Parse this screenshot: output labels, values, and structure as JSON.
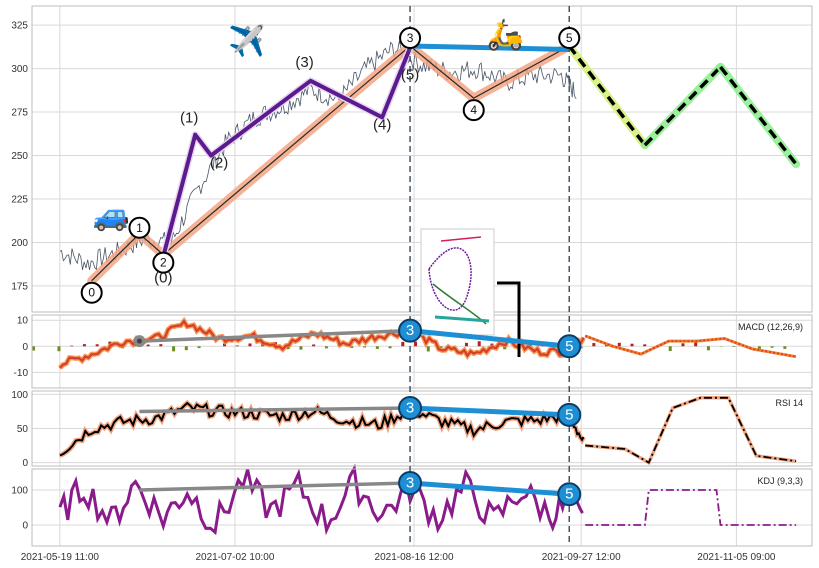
{
  "chart_data": [
    {
      "type": "line",
      "panel": "price",
      "x_ticks": [
        "2021-05-19 11:00",
        "2021-07-02 10:00",
        "2021-08-16 12:00",
        "2021-09-27 12:00",
        "2021-11-05 09:00"
      ],
      "y_ticks": [
        175,
        200,
        225,
        250,
        275,
        300,
        325
      ],
      "ylim": [
        160,
        336
      ],
      "grid": true,
      "series": [
        {
          "role": "price",
          "color": "#4a5568",
          "x": [
            "2021-05-19",
            "2021-05-26",
            "2021-06-02",
            "2021-06-09",
            "2021-06-16",
            "2021-06-23",
            "2021-06-30",
            "2021-07-07",
            "2021-07-14",
            "2021-07-21",
            "2021-07-28",
            "2021-08-04",
            "2021-08-11",
            "2021-08-18",
            "2021-08-25",
            "2021-09-01",
            "2021-09-08",
            "2021-09-15",
            "2021-09-22",
            "2021-09-26"
          ],
          "y": [
            195,
            188,
            194,
            202,
            200,
            232,
            258,
            272,
            278,
            288,
            282,
            300,
            312,
            302,
            298,
            300,
            292,
            296,
            296,
            285
          ]
        },
        {
          "role": "primary-wave",
          "color": "#f4a582",
          "points": [
            {
              "label": "0",
              "x": "2021-05-27",
              "y": 178
            },
            {
              "label": "1",
              "x": "2021-06-08",
              "y": 205
            },
            {
              "label": "2",
              "x": "2021-06-14",
              "y": 193
            },
            {
              "label": "3",
              "x": "2021-08-15",
              "y": 313
            },
            {
              "label": "4",
              "x": "2021-08-31",
              "y": 283
            },
            {
              "label": "5",
              "x": "2021-09-24",
              "y": 313
            }
          ]
        },
        {
          "role": "minor-wave",
          "color": "#5b1a8e",
          "points": [
            {
              "label": "(0)",
              "x": "2021-06-14",
              "y": 192
            },
            {
              "label": "(1)",
              "x": "2021-06-22",
              "y": 262
            },
            {
              "label": "(2)",
              "x": "2021-06-26",
              "y": 250
            },
            {
              "label": "(3)",
              "x": "2021-07-21",
              "y": 293
            },
            {
              "label": "(4)",
              "x": "2021-08-08",
              "y": 272
            },
            {
              "label": "(5)",
              "x": "2021-08-15",
              "y": 312
            }
          ]
        },
        {
          "role": "projection",
          "colors": [
            "#d6f27a",
            "#90ee90"
          ],
          "x": [
            "2021-09-24",
            "2021-10-13",
            "2021-11-01",
            "2021-11-20"
          ],
          "y": [
            313,
            256,
            301,
            245
          ]
        },
        {
          "role": "divergence",
          "color": "#1e8fd5",
          "x": [
            "2021-08-15",
            "2021-09-24"
          ],
          "y": [
            313,
            311
          ]
        }
      ],
      "vertical_lines": [
        "2021-08-15",
        "2021-09-24"
      ],
      "icons": [
        {
          "name": "car-icon",
          "glyph": "🚙",
          "x": "2021-06-01",
          "y": 210
        },
        {
          "name": "plane-icon",
          "glyph": "✈️",
          "x": "2021-07-05",
          "y": 310
        },
        {
          "name": "scooter-icon",
          "glyph": "🛵",
          "x": "2021-09-08",
          "y": 314
        }
      ]
    },
    {
      "type": "line",
      "panel": "macd",
      "label": "MACD (12,26,9)",
      "y_ticks": [
        10,
        0,
        -10
      ],
      "ylim": [
        -16,
        12
      ],
      "series": [
        {
          "role": "macd",
          "color": "#d43f2a",
          "x": [
            "2021-05-19",
            "2021-05-27",
            "2021-06-04",
            "2021-06-12",
            "2021-06-20",
            "2021-06-28",
            "2021-07-06",
            "2021-07-14",
            "2021-07-22",
            "2021-07-30",
            "2021-08-07",
            "2021-08-15",
            "2021-08-23",
            "2021-08-31",
            "2021-09-08",
            "2021-09-16",
            "2021-09-24",
            "2021-09-28",
            "2021-10-05",
            "2021-10-12",
            "2021-10-19",
            "2021-10-26",
            "2021-11-02",
            "2021-11-09",
            "2021-11-20"
          ],
          "y": [
            -7,
            -3,
            2,
            3,
            9,
            3,
            4,
            0,
            5,
            1,
            4,
            6,
            -1,
            -3,
            2,
            -2,
            -2,
            4,
            0,
            -3,
            2,
            2,
            3,
            -1,
            -4
          ]
        }
      ],
      "divergence_markers": [
        {
          "label": "3",
          "x": "2021-08-15",
          "y": 6
        },
        {
          "label": "5",
          "x": "2021-09-24",
          "y": 0
        }
      ],
      "grey_line": {
        "x": [
          "2021-06-08",
          "2021-08-15"
        ],
        "y": [
          2,
          6
        ]
      }
    },
    {
      "type": "line",
      "panel": "rsi",
      "label": "RSI 14",
      "y_ticks": [
        100,
        50,
        0
      ],
      "ylim": [
        -5,
        105
      ],
      "series": [
        {
          "role": "rsi",
          "color": "#000000",
          "x": [
            "2021-05-19",
            "2021-05-27",
            "2021-06-04",
            "2021-06-12",
            "2021-06-20",
            "2021-06-28",
            "2021-07-06",
            "2021-07-14",
            "2021-07-22",
            "2021-07-30",
            "2021-08-07",
            "2021-08-15",
            "2021-08-23",
            "2021-08-31",
            "2021-09-08",
            "2021-09-16",
            "2021-09-24",
            "2021-09-28",
            "2021-10-08",
            "2021-10-14",
            "2021-10-20",
            "2021-10-27",
            "2021-11-03",
            "2021-11-10",
            "2021-11-20"
          ],
          "y": [
            15,
            50,
            60,
            65,
            80,
            75,
            72,
            68,
            75,
            62,
            55,
            78,
            60,
            48,
            60,
            62,
            70,
            25,
            20,
            0,
            80,
            95,
            95,
            10,
            2
          ]
        }
      ],
      "divergence_markers": [
        {
          "label": "3",
          "x": "2021-08-15",
          "y": 80
        },
        {
          "label": "5",
          "x": "2021-09-24",
          "y": 70
        }
      ],
      "grey_line": {
        "x": [
          "2021-06-08",
          "2021-08-15"
        ],
        "y": [
          75,
          80
        ]
      }
    },
    {
      "type": "line",
      "panel": "kdj",
      "label": "KDJ (9,3,3)",
      "y_ticks": [
        100,
        0
      ],
      "ylim": [
        -60,
        160
      ],
      "series": [
        {
          "role": "kdj",
          "color": "#8b1a8b",
          "x": [
            "2021-05-19",
            "2021-05-25",
            "2021-06-01",
            "2021-06-07",
            "2021-06-14",
            "2021-06-20",
            "2021-06-27",
            "2021-07-04",
            "2021-07-11",
            "2021-07-18",
            "2021-07-25",
            "2021-08-01",
            "2021-08-08",
            "2021-08-15",
            "2021-08-22",
            "2021-08-29",
            "2021-09-05",
            "2021-09-12",
            "2021-09-19",
            "2021-09-24",
            "2021-09-28",
            "2021-10-13",
            "2021-10-14",
            "2021-10-31",
            "2021-11-01",
            "2021-11-20"
          ],
          "y": [
            30,
            110,
            10,
            120,
            20,
            100,
            0,
            130,
            40,
            110,
            10,
            120,
            30,
            105,
            20,
            110,
            10,
            100,
            30,
            60,
            0,
            0,
            100,
            100,
            0,
            0
          ]
        }
      ],
      "divergence_markers": [
        {
          "label": "3",
          "x": "2021-08-15",
          "y": 120
        },
        {
          "label": "5",
          "x": "2021-09-24",
          "y": 88
        }
      ],
      "grey_line": {
        "x": [
          "2021-06-08",
          "2021-08-15"
        ],
        "y": [
          100,
          120
        ]
      }
    }
  ]
}
